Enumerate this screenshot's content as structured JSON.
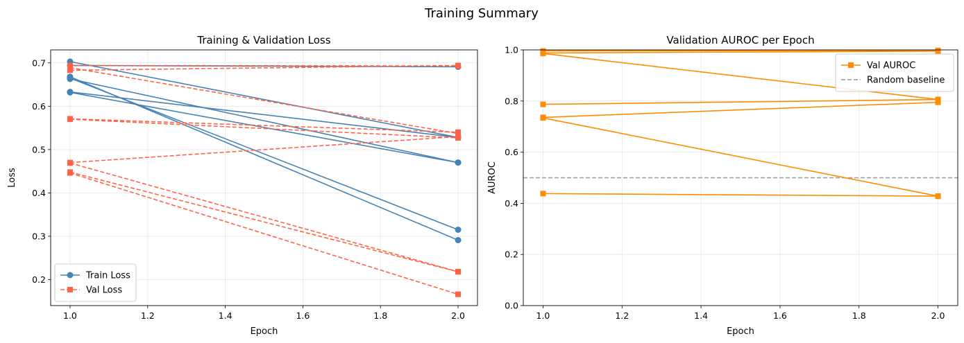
{
  "figure": {
    "suptitle": "Training Summary"
  },
  "chart_data": [
    {
      "type": "line",
      "title": "Training & Validation Loss",
      "xlabel": "Epoch",
      "ylabel": "Loss",
      "xlim": [
        0.95,
        2.05
      ],
      "ylim": [
        0.14,
        0.73
      ],
      "xticks": [
        "1.0",
        "1.2",
        "1.4",
        "1.6",
        "1.8",
        "2.0"
      ],
      "yticks": [
        "0.2",
        "0.3",
        "0.4",
        "0.5",
        "0.6",
        "0.7"
      ],
      "grid": true,
      "legend_position": "lower-left",
      "legend": [
        "Train Loss",
        "Val Loss"
      ],
      "series": [
        {
          "name": "Train Loss",
          "color": "#4682b4",
          "marker": "circle",
          "style": "solid",
          "runs": [
            [
              0.703,
              0.528
            ],
            [
              0.694,
              0.691
            ],
            [
              0.668,
              0.291
            ],
            [
              0.665,
              0.315
            ],
            [
              0.663,
              0.47
            ],
            [
              0.633,
              0.528
            ],
            [
              0.632,
              0.47
            ]
          ]
        },
        {
          "name": "Val Loss",
          "color": "#ff6347",
          "marker": "square",
          "style": "dashed",
          "runs": [
            [
              0.694,
              0.693
            ],
            [
              0.689,
              0.537
            ],
            [
              0.683,
              0.694
            ],
            [
              0.571,
              0.54
            ],
            [
              0.57,
              0.527
            ],
            [
              0.47,
              0.53
            ],
            [
              0.469,
              0.218
            ],
            [
              0.448,
              0.218
            ],
            [
              0.446,
              0.166
            ]
          ]
        }
      ]
    },
    {
      "type": "line",
      "title": "Validation AUROC per Epoch",
      "xlabel": "Epoch",
      "ylabel": "AUROC",
      "xlim": [
        0.95,
        2.05
      ],
      "ylim": [
        0.0,
        1.0
      ],
      "xticks": [
        "1.0",
        "1.2",
        "1.4",
        "1.6",
        "1.8",
        "2.0"
      ],
      "yticks": [
        "0.0",
        "0.2",
        "0.4",
        "0.6",
        "0.8",
        "1.0"
      ],
      "grid": true,
      "legend_position": "upper-right",
      "legend": [
        "Val AUROC",
        "Random baseline"
      ],
      "series": [
        {
          "name": "Val AUROC",
          "color": "#ff8c00",
          "marker": "square",
          "style": "solid",
          "runs": [
            [
              0.996,
              0.998
            ],
            [
              0.988,
              0.995
            ],
            [
              0.986,
              0.806
            ],
            [
              0.787,
              0.806
            ],
            [
              0.736,
              0.795
            ],
            [
              0.734,
              0.428
            ],
            [
              0.438,
              0.428
            ]
          ]
        }
      ],
      "baseline": {
        "name": "Random baseline",
        "value": 0.5,
        "color": "#999999",
        "style": "dashed"
      }
    }
  ]
}
